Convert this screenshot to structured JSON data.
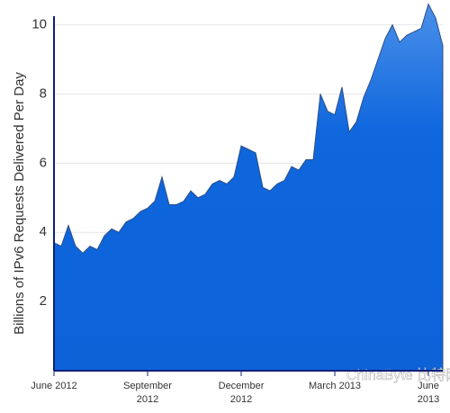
{
  "chart_data": {
    "type": "area",
    "y_label": "Billions of IPv6 Requests Delivered Per Day",
    "categories": [
      "June 2012",
      null,
      null,
      null,
      null,
      null,
      null,
      null,
      null,
      null,
      null,
      null,
      null,
      "September 2012",
      null,
      null,
      null,
      null,
      null,
      null,
      null,
      null,
      null,
      null,
      null,
      null,
      "December 2012",
      null,
      null,
      null,
      null,
      null,
      null,
      null,
      null,
      null,
      null,
      null,
      null,
      "March 2013",
      null,
      null,
      null,
      null,
      null,
      null,
      null,
      null,
      null,
      null,
      null,
      null,
      "June 2013",
      null,
      null
    ],
    "values": [
      3.7,
      3.6,
      4.2,
      3.6,
      3.4,
      3.6,
      3.5,
      3.9,
      4.1,
      4.0,
      4.3,
      4.4,
      4.6,
      4.7,
      4.9,
      5.6,
      4.8,
      4.8,
      4.9,
      5.2,
      5.0,
      5.1,
      5.4,
      5.5,
      5.4,
      5.6,
      6.5,
      6.4,
      6.3,
      5.3,
      5.2,
      5.4,
      5.5,
      5.9,
      5.8,
      6.1,
      6.1,
      8.0,
      7.5,
      7.4,
      8.2,
      6.9,
      7.2,
      7.9,
      8.4,
      9.0,
      9.6,
      10.0,
      9.5,
      9.7,
      9.8,
      9.9,
      10.6,
      10.2,
      9.4
    ],
    "color": "#0f66dd",
    "ylim": [
      0,
      10.25
    ],
    "yticks": [
      2,
      4,
      6,
      8,
      10
    ],
    "grid": true,
    "watermark": "ChinaByte 比特网"
  }
}
